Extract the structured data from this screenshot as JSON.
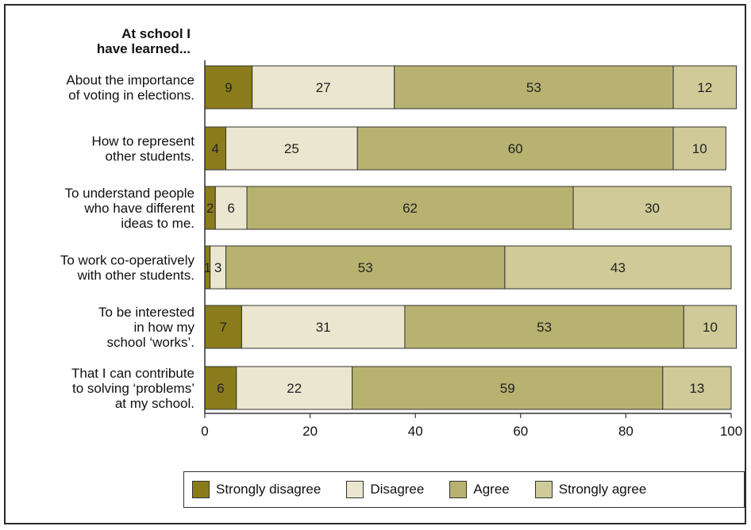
{
  "chart_data": {
    "type": "bar",
    "orientation": "horizontal-stacked",
    "title": "At school I have learned...",
    "title_lines": [
      "At school I",
      "have learned..."
    ],
    "categories": [
      {
        "lines": [
          "About the importance",
          "of voting in elections."
        ]
      },
      {
        "lines": [
          "How to represent",
          "other students."
        ]
      },
      {
        "lines": [
          "To understand people",
          "who have different",
          "ideas to me."
        ]
      },
      {
        "lines": [
          "To work co-operatively",
          "with other students."
        ]
      },
      {
        "lines": [
          "To be interested",
          "in how my",
          "school ‘works’."
        ]
      },
      {
        "lines": [
          "That I can contribute",
          "to solving ‘problems’",
          "at my school."
        ]
      }
    ],
    "series": [
      {
        "name": "Strongly disagree",
        "color": "#8a7c1c",
        "values": [
          9,
          4,
          2,
          1,
          7,
          6
        ]
      },
      {
        "name": "Disagree",
        "color": "#ebe6cf",
        "values": [
          27,
          25,
          6,
          3,
          31,
          22
        ]
      },
      {
        "name": "Agree",
        "color": "#b7b270",
        "values": [
          53,
          60,
          62,
          53,
          53,
          59
        ]
      },
      {
        "name": "Strongly agree",
        "color": "#cfca97",
        "values": [
          12,
          10,
          30,
          43,
          10,
          13
        ]
      }
    ],
    "xlim": [
      0,
      100
    ],
    "xticks": [
      0,
      20,
      40,
      60,
      80,
      100
    ],
    "legend_position": "bottom"
  }
}
